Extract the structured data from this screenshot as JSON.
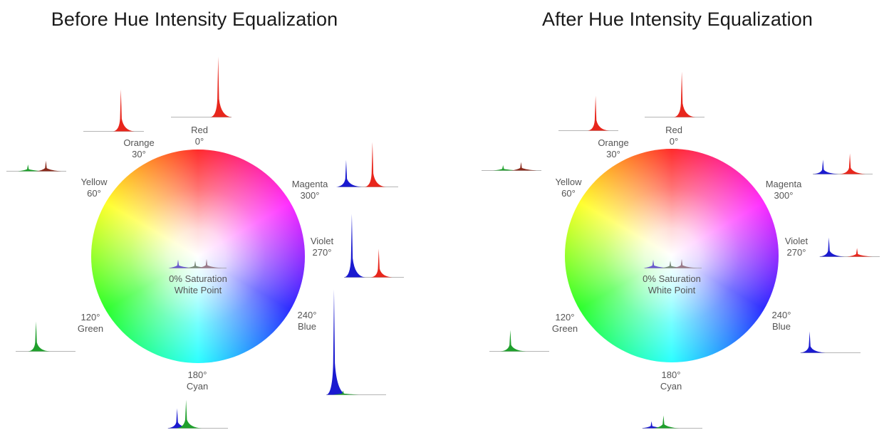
{
  "panels": [
    {
      "title": "Before Hue Intensity Equalization",
      "labels": {
        "red": {
          "name": "Red",
          "angle": "0°"
        },
        "orange": {
          "name": "Orange",
          "angle": "30°"
        },
        "yellow": {
          "name": "Yellow",
          "angle": "60°"
        },
        "green": {
          "name": "Green",
          "angle": "120°"
        },
        "cyan": {
          "name": "Cyan",
          "angle": "180°"
        },
        "blue": {
          "name": "Blue",
          "angle": "240°"
        },
        "violet": {
          "name": "Violet",
          "angle": "270°"
        },
        "magenta": {
          "name": "Magenta",
          "angle": "300°"
        }
      },
      "center": {
        "line1": "0% Saturation",
        "line2": "White Point"
      }
    },
    {
      "title": "After Hue Intensity Equalization",
      "labels": {
        "red": {
          "name": "Red",
          "angle": "0°"
        },
        "orange": {
          "name": "Orange",
          "angle": "30°"
        },
        "yellow": {
          "name": "Yellow",
          "angle": "60°"
        },
        "green": {
          "name": "Green",
          "angle": "120°"
        },
        "cyan": {
          "name": "Cyan",
          "angle": "180°"
        },
        "blue": {
          "name": "Blue",
          "angle": "240°"
        },
        "violet": {
          "name": "Violet",
          "angle": "270°"
        },
        "magenta": {
          "name": "Magenta",
          "angle": "300°"
        }
      },
      "center": {
        "line1": "0% Saturation",
        "line2": "White Point"
      }
    }
  ],
  "spectra": {
    "before": {
      "red": [
        {
          "color": "#e8261c",
          "peak": 1.0
        }
      ],
      "orange": [
        {
          "color": "#e8261c",
          "peak": 1.0
        }
      ],
      "yellow": [
        {
          "color": "#1fa02c",
          "peak": 0.45
        },
        {
          "color": "#8a2a1c",
          "peak": 0.7
        }
      ],
      "magenta": [
        {
          "color": "#1a1ad0",
          "peak": 0.6
        },
        {
          "color": "#e8261c",
          "peak": 1.0
        }
      ],
      "violet": [
        {
          "color": "#1a1ad0",
          "peak": 1.0
        },
        {
          "color": "#e8261c",
          "peak": 0.45
        }
      ],
      "blue": [
        {
          "color": "#1a1ad0",
          "peak": 1.0
        },
        {
          "color": "#1fa02c",
          "peak": 0.04
        }
      ],
      "green": [
        {
          "color": "#1fa02c",
          "peak": 1.0
        }
      ],
      "cyan": [
        {
          "color": "#1a1ad0",
          "peak": 0.7
        },
        {
          "color": "#1fa02c",
          "peak": 1.0
        }
      ],
      "white": [
        {
          "color": "#6a5acd",
          "peak": 0.7
        },
        {
          "color": "#7a8a7a",
          "peak": 0.6
        },
        {
          "color": "#9a7a8a",
          "peak": 0.75
        }
      ]
    },
    "after": {
      "red": [
        {
          "color": "#e8261c",
          "peak": 1.0
        }
      ],
      "orange": [
        {
          "color": "#e8261c",
          "peak": 1.0
        }
      ],
      "yellow": [
        {
          "color": "#1fa02c",
          "peak": 0.45
        },
        {
          "color": "#8a2a1c",
          "peak": 0.7
        }
      ],
      "magenta": [
        {
          "color": "#1a1ad0",
          "peak": 0.7
        },
        {
          "color": "#e8261c",
          "peak": 1.0
        }
      ],
      "violet": [
        {
          "color": "#1a1ad0",
          "peak": 1.0
        },
        {
          "color": "#e8261c",
          "peak": 0.45
        }
      ],
      "blue": [
        {
          "color": "#1a1ad0",
          "peak": 1.0
        }
      ],
      "green": [
        {
          "color": "#1fa02c",
          "peak": 1.0
        }
      ],
      "cyan": [
        {
          "color": "#1a1ad0",
          "peak": 0.55
        },
        {
          "color": "#1fa02c",
          "peak": 1.0
        }
      ],
      "white": [
        {
          "color": "#6a5acd",
          "peak": 0.7
        },
        {
          "color": "#7a8a7a",
          "peak": 0.6
        },
        {
          "color": "#9a7a8a",
          "peak": 0.75
        }
      ]
    }
  }
}
